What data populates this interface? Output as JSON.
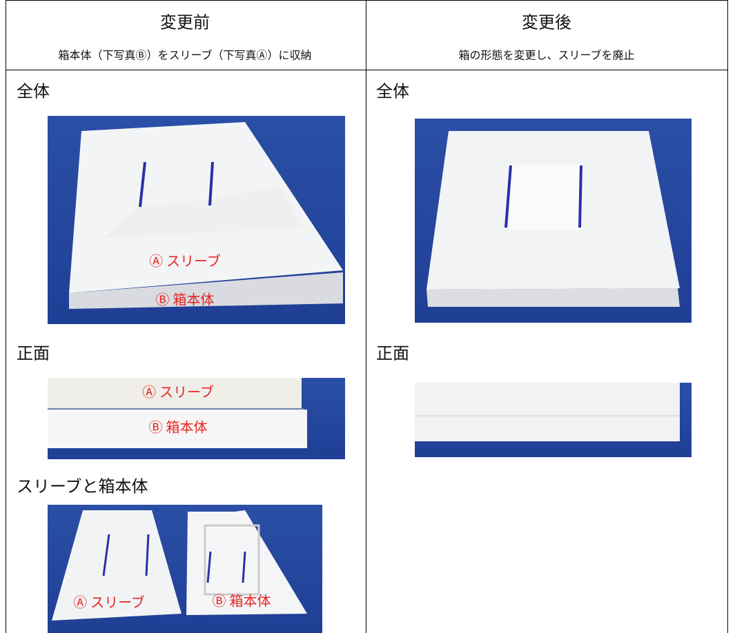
{
  "table": {
    "columns": [
      {
        "title": "変更前",
        "subtitle": "箱本体（下写真Ⓑ）をスリーブ（下写真Ⓐ）に収納"
      },
      {
        "title": "変更後",
        "subtitle": "箱の形態を変更し、スリーブを廃止"
      }
    ]
  },
  "before": {
    "sections": [
      {
        "heading": "全体",
        "labels": [
          "Ⓐ スリーブ",
          "Ⓑ 箱本体"
        ]
      },
      {
        "heading": "正面",
        "labels": [
          "Ⓐ スリーブ",
          "Ⓑ 箱本体"
        ]
      },
      {
        "heading": "スリーブと箱本体",
        "labels": [
          "Ⓐ スリーブ",
          "Ⓑ 箱本体"
        ]
      }
    ]
  },
  "after": {
    "sections": [
      {
        "heading": "全体"
      },
      {
        "heading": "正面"
      }
    ]
  }
}
